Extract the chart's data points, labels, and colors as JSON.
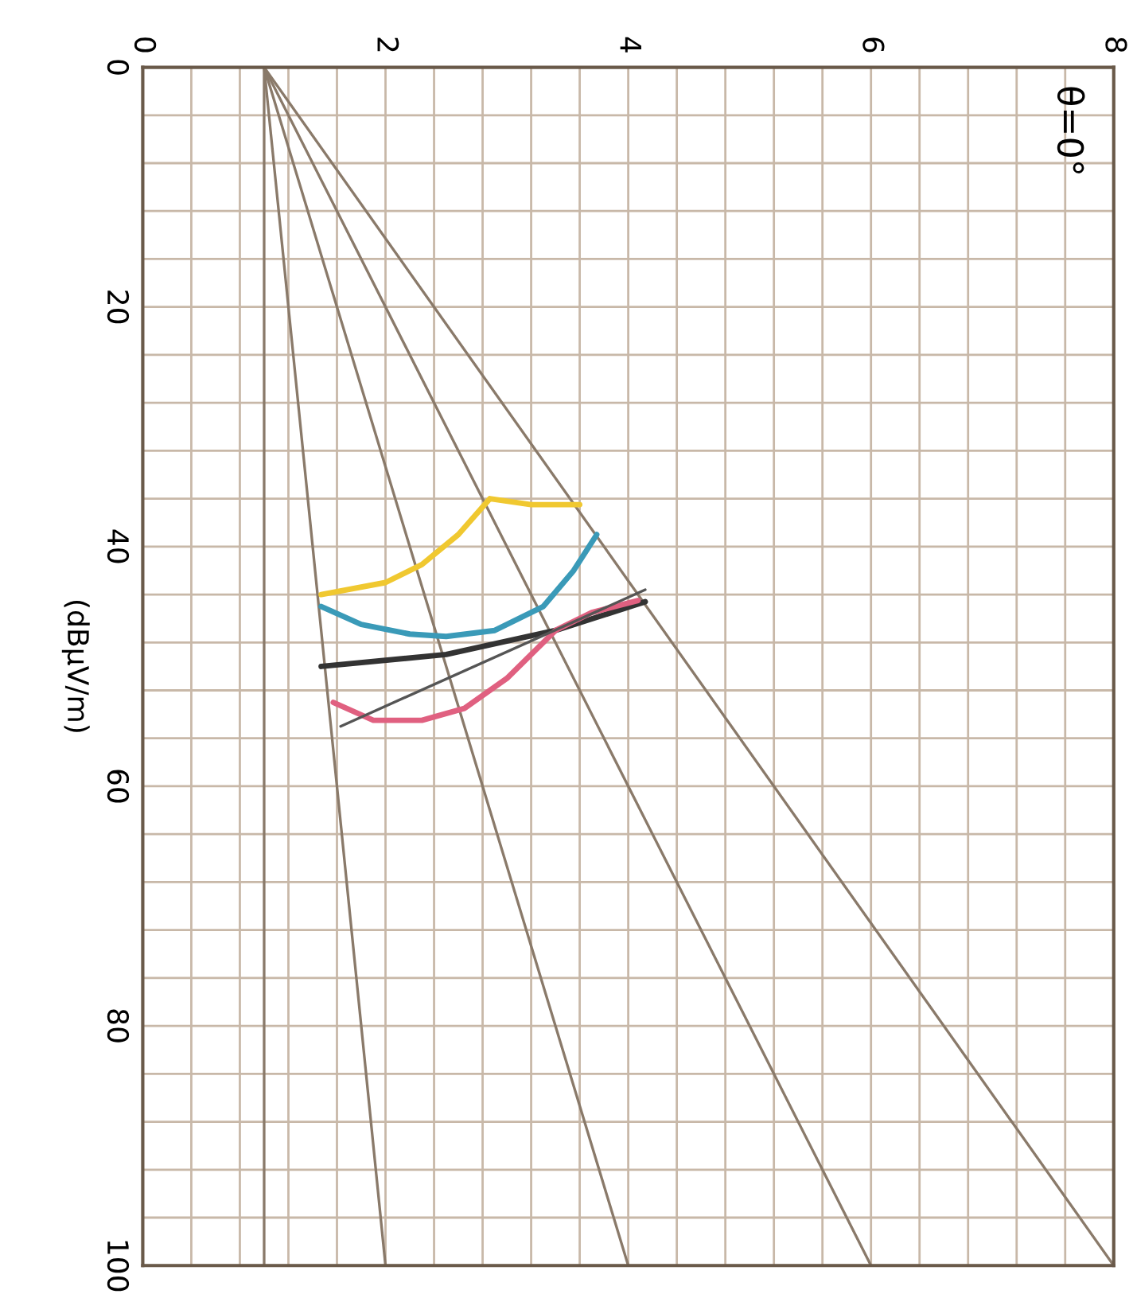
{
  "chart_data": {
    "type": "line",
    "ylabel": "(dBμV/m)",
    "annotations": [
      "θ=0°"
    ],
    "xlim": [
      0,
      8
    ],
    "ylim": [
      100,
      0
    ],
    "xticks": [
      0,
      {
        "value": 0.4,
        "label": null
      },
      {
        "value": 0.8,
        "label": null
      },
      {
        "value": 1.2,
        "label": null
      },
      {
        "value": 1.6,
        "label": null
      },
      2,
      {
        "value": 2.4,
        "label": null
      },
      {
        "value": 2.8,
        "label": null
      },
      {
        "value": 3.2,
        "label": null
      },
      {
        "value": 3.6,
        "label": null
      },
      4,
      {
        "value": 4.4,
        "label": null
      },
      {
        "value": 4.8,
        "label": null
      },
      {
        "value": 5.2,
        "label": null
      },
      {
        "value": 5.6,
        "label": null
      },
      6,
      {
        "value": 6.4,
        "label": null
      },
      {
        "value": 6.8,
        "label": null
      },
      {
        "value": 7.2,
        "label": null
      },
      {
        "value": 7.6,
        "label": null
      },
      8
    ],
    "yticks": [
      0,
      {
        "value": 4,
        "label": null
      },
      {
        "value": 8,
        "label": null
      },
      {
        "value": 12,
        "label": null
      },
      {
        "value": 16,
        "label": null
      },
      20,
      {
        "value": 24,
        "label": null
      },
      {
        "value": 28,
        "label": null
      },
      {
        "value": 32,
        "label": null
      },
      {
        "value": 36,
        "label": null
      },
      40,
      {
        "value": 44,
        "label": null
      },
      {
        "value": 48,
        "label": null
      },
      {
        "value": 52,
        "label": null
      },
      {
        "value": 56,
        "label": null
      },
      60,
      {
        "value": 64,
        "label": null
      },
      {
        "value": 68,
        "label": null
      },
      {
        "value": 72,
        "label": null
      },
      {
        "value": 76,
        "label": null
      },
      80,
      {
        "value": 84,
        "label": null
      },
      {
        "value": 88,
        "label": null
      },
      {
        "value": 92,
        "label": null
      },
      {
        "value": 96,
        "label": null
      },
      100
    ],
    "grid": true,
    "marker": "none",
    "line_style": "solid",
    "series": [
      {
        "color": "#8a7a6a",
        "x": [
          1,
          1
        ],
        "values": [
          0,
          100
        ]
      },
      {
        "color": "#8a7a6a",
        "x": [
          1,
          2
        ],
        "values": [
          0,
          100
        ]
      },
      {
        "color": "#8a7a6a",
        "x": [
          1,
          4
        ],
        "values": [
          0,
          100
        ]
      },
      {
        "color": "#8a7a6a",
        "x": [
          1,
          6
        ],
        "values": [
          0,
          100
        ]
      },
      {
        "color": "#8a7a6a",
        "x": [
          1,
          8
        ],
        "values": [
          0,
          100
        ]
      },
      {
        "color": "#f0c830",
        "x": [
          1.47,
          2.0,
          2.3,
          2.6,
          2.86,
          3.2,
          3.6
        ],
        "values": [
          44,
          43,
          41.5,
          39,
          36,
          36.5,
          36.5
        ]
      },
      {
        "color": "#3a9ab8",
        "x": [
          1.47,
          1.8,
          2.2,
          2.5,
          2.9,
          3.3,
          3.55,
          3.74
        ],
        "values": [
          45,
          46.5,
          47.3,
          47.5,
          47,
          45,
          42,
          39
        ]
      },
      {
        "color": "#333333",
        "x": [
          1.47,
          2.5,
          3.4,
          4.14
        ],
        "values": [
          50,
          49,
          47,
          44.6
        ]
      },
      {
        "color": "#e06080",
        "x": [
          1.57,
          1.9,
          2.3,
          2.65,
          3.0,
          3.4,
          3.7,
          4.08
        ],
        "values": [
          53,
          54.5,
          54.5,
          53.5,
          51,
          47,
          45.5,
          44.5
        ]
      },
      {
        "color": "#555555",
        "x": [
          1.63,
          4.14
        ],
        "values": [
          55,
          43.6
        ]
      }
    ]
  }
}
